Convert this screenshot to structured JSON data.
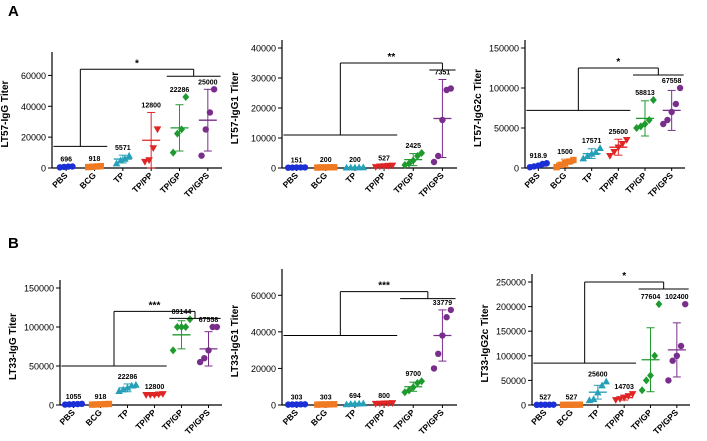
{
  "panel_labels": [
    "A",
    "B"
  ],
  "groups": [
    "PBS",
    "BCG",
    "TP",
    "TP/PP",
    "TP/GP",
    "TP/GPS"
  ],
  "colors": [
    "#1b2fd6",
    "#f07a22",
    "#25a0b8",
    "#e02525",
    "#1e9a2e",
    "#7a2e8c"
  ],
  "markers": [
    "circle",
    "square",
    "triangle-up",
    "triangle-down",
    "diamond",
    "circle"
  ],
  "chart_data": [
    {
      "type": "scatter",
      "panel": "A",
      "ylabel": "LT57-IgG Titer",
      "ylim": [
        0,
        70000
      ],
      "yticks": [
        0,
        20000,
        40000,
        60000
      ],
      "yticklabels": [
        "0",
        "20000",
        "40000",
        "60000"
      ],
      "labels": [
        "696",
        "918",
        "5571",
        "12800",
        "22286",
        "25000"
      ],
      "means": [
        700,
        918,
        5800,
        18000,
        26000,
        31000
      ],
      "sds": [
        300,
        400,
        2500,
        18000,
        15000,
        20000
      ],
      "points": [
        [
          400,
          700,
          900,
          1000
        ],
        [
          600,
          800,
          1000,
          1200
        ],
        [
          3000,
          5000,
          6000,
          8000
        ],
        [
          4000,
          5000,
          12800,
          25000
        ],
        [
          10000,
          22286,
          25000,
          46000
        ],
        [
          8000,
          25000,
          36000,
          51000
        ]
      ],
      "significance": [
        {
          "label": "*",
          "left_groups": [
            0,
            1
          ],
          "right_groups": [
            4,
            5
          ],
          "left_y": 14000,
          "bar_y": 64000
        }
      ]
    },
    {
      "type": "scatter",
      "panel": "A",
      "ylabel": "LT57-IgG1 Titer",
      "ylim": [
        0,
        40000
      ],
      "yticks": [
        0,
        10000,
        20000,
        30000,
        40000
      ],
      "yticklabels": [
        "0",
        "10000",
        "20000",
        "30000",
        "40000"
      ],
      "labels": [
        "151",
        "200",
        "200",
        "527",
        "2425",
        "7351"
      ],
      "means": [
        151,
        200,
        200,
        527,
        2800,
        16500
      ],
      "sds": [
        60,
        80,
        80,
        300,
        2000,
        13000
      ],
      "points": [
        [
          100,
          150,
          170,
          200,
          200
        ],
        [
          150,
          200,
          200,
          250,
          250
        ],
        [
          150,
          200,
          200,
          250,
          250
        ],
        [
          300,
          500,
          600,
          700,
          800
        ],
        [
          1000,
          1500,
          2500,
          4000,
          5000
        ],
        [
          2000,
          4000,
          16000,
          26000,
          26500
        ]
      ],
      "significance": [
        {
          "label": "**",
          "left_groups": [
            0,
            1,
            2,
            3
          ],
          "right_groups": [
            5
          ],
          "left_y": 11000,
          "bar_y": 35000
        }
      ]
    },
    {
      "type": "scatter",
      "panel": "A",
      "ylabel": "LT57-IgG2c Titer",
      "ylim": [
        0,
        150000
      ],
      "yticks": [
        0,
        50000,
        100000,
        150000
      ],
      "yticklabels": [
        "0",
        "50000",
        "100000",
        "150000"
      ],
      "labels": [
        "918.9",
        "1500",
        "17571",
        "25600",
        "58813",
        "67558"
      ],
      "means": [
        2500,
        6000,
        18000,
        26000,
        62000,
        72000
      ],
      "sds": [
        1500,
        5000,
        6000,
        10000,
        22000,
        25000
      ],
      "points": [
        [
          1000,
          2000,
          3000,
          5000,
          6000
        ],
        [
          1000,
          4000,
          6000,
          8000,
          10000
        ],
        [
          12000,
          15000,
          18000,
          20000,
          25000
        ],
        [
          15000,
          20000,
          25600,
          30000,
          35000
        ],
        [
          50000,
          52000,
          55000,
          60000,
          85000
        ],
        [
          55000,
          60000,
          70000,
          80000,
          100000
        ]
      ],
      "significance": [
        {
          "label": "*",
          "left_groups": [
            0,
            1,
            2,
            3
          ],
          "right_groups": [
            4,
            5
          ],
          "left_y": 72000,
          "bar_y": 125000
        }
      ]
    },
    {
      "type": "scatter",
      "panel": "B",
      "ylabel": "LT33-IgG Titer",
      "ylim": [
        0,
        150000
      ],
      "yticks": [
        0,
        50000,
        100000,
        150000
      ],
      "yticklabels": [
        "0",
        "50000",
        "100000",
        "150000"
      ],
      "labels": [
        "1055",
        "918",
        "22286",
        "12800",
        "89144",
        "67558"
      ],
      "means": [
        1055,
        918,
        22000,
        13000,
        90000,
        72000
      ],
      "sds": [
        500,
        400,
        5000,
        1000,
        18000,
        22000
      ],
      "points": [
        [
          500,
          800,
          1000,
          1200,
          1500
        ],
        [
          500,
          700,
          900,
          1100,
          1300
        ],
        [
          18000,
          20000,
          22286,
          25000,
          26000
        ],
        [
          12800,
          12800,
          12800,
          13500,
          14000
        ],
        [
          70000,
          100000,
          100000,
          100000,
          110000
        ],
        [
          55000,
          60000,
          70000,
          100000,
          100000
        ]
      ],
      "significance": [
        {
          "label": "***",
          "left_groups": [
            0,
            1,
            2,
            3
          ],
          "right_groups": [
            4,
            5
          ],
          "left_y": 50000,
          "bar_y": 120000
        }
      ]
    },
    {
      "type": "scatter",
      "panel": "B",
      "ylabel": "LT33-IgG1 Titer",
      "ylim": [
        0,
        70000
      ],
      "yticks": [
        0,
        20000,
        40000,
        60000
      ],
      "yticklabels": [
        "0",
        "20000",
        "40000",
        "60000"
      ],
      "labels": [
        "303",
        "303",
        "694",
        "800",
        "9700",
        "33779"
      ],
      "means": [
        303,
        303,
        694,
        800,
        10000,
        38000
      ],
      "sds": [
        100,
        100,
        300,
        300,
        2500,
        14000
      ],
      "points": [
        [
          200,
          300,
          300,
          350,
          400
        ],
        [
          200,
          300,
          300,
          350,
          400
        ],
        [
          400,
          600,
          700,
          800,
          900
        ],
        [
          600,
          700,
          800,
          900,
          1000
        ],
        [
          7000,
          8000,
          9700,
          12000,
          13000
        ],
        [
          20000,
          28000,
          38000,
          48000,
          52000
        ]
      ],
      "significance": [
        {
          "label": "***",
          "left_groups": [
            0,
            1,
            2,
            3
          ],
          "right_groups": [
            4,
            5
          ],
          "left_y": 38000,
          "bar_y": 62000
        }
      ]
    },
    {
      "type": "scatter",
      "panel": "B",
      "ylabel": "LT33-IgG2c Titer",
      "ylim": [
        0,
        250000
      ],
      "yticks": [
        0,
        50000,
        100000,
        150000,
        200000,
        250000
      ],
      "yticklabels": [
        "0",
        "50000",
        "100000",
        "150000",
        "200000",
        "250000"
      ],
      "labels": [
        "527",
        "527",
        "25600",
        "14703",
        "77604",
        "102400"
      ],
      "means": [
        527,
        527,
        26000,
        15000,
        92000,
        112000
      ],
      "sds": [
        200,
        200,
        14000,
        5000,
        65000,
        55000
      ],
      "points": [
        [
          300,
          500,
          527,
          600,
          700
        ],
        [
          300,
          500,
          527,
          600,
          700
        ],
        [
          10000,
          12000,
          25600,
          40000,
          48000
        ],
        [
          10000,
          12000,
          14703,
          18000,
          22000
        ],
        [
          30000,
          50000,
          60000,
          100000,
          205000
        ],
        [
          50000,
          90000,
          100000,
          120000,
          205000
        ]
      ],
      "significance": [
        {
          "label": "*",
          "left_groups": [
            0,
            1,
            2,
            3
          ],
          "right_groups": [
            4,
            5
          ],
          "left_y": 85000,
          "bar_y": 250000
        }
      ]
    }
  ]
}
